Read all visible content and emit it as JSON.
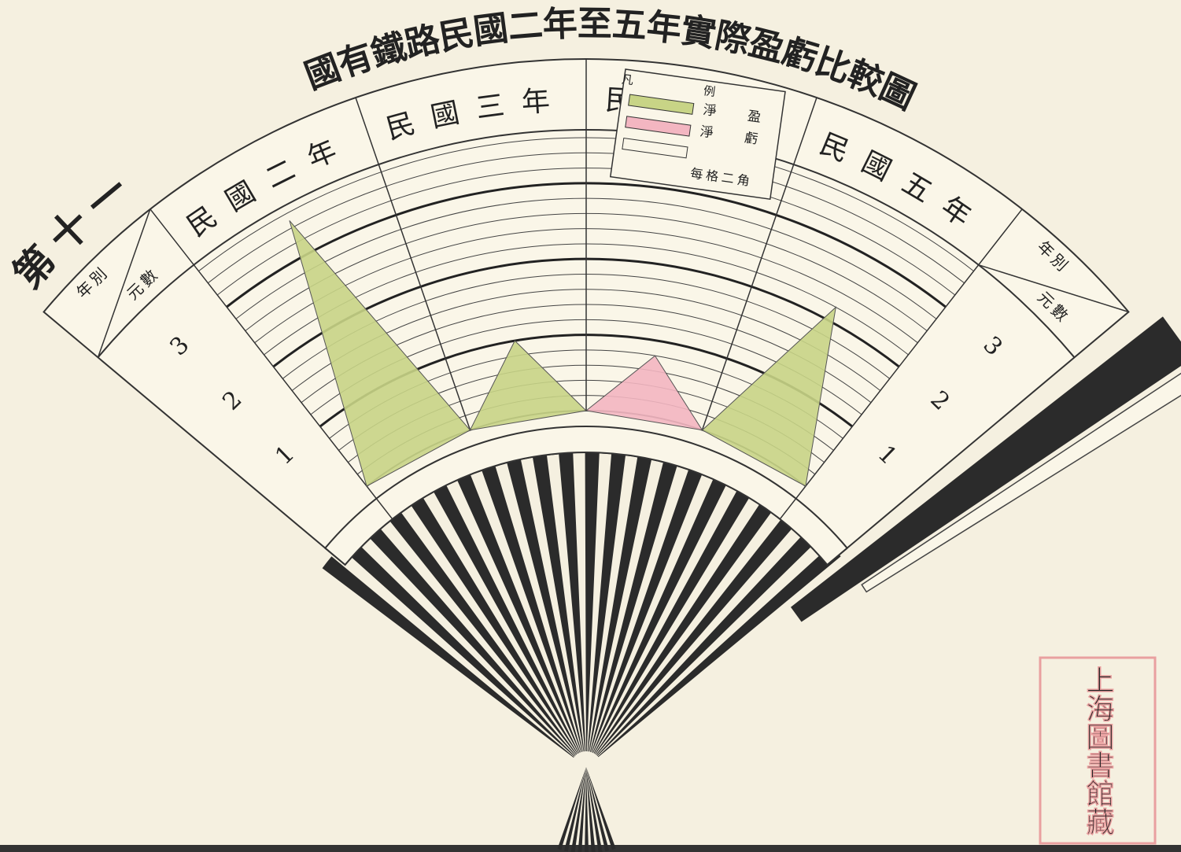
{
  "chart_data": {
    "type": "fan",
    "number": "第十一",
    "title": "國有鐵路民國二年至五年實際盈虧比較圖",
    "corner_labels": [
      "年別",
      "元數"
    ],
    "categories": [
      "民國二年",
      "民國三年",
      "民國四年",
      "民國五年"
    ],
    "series": [
      {
        "name": "淨盈",
        "color": "#c8d486",
        "values": [
          3.5,
          1.0,
          null,
          2.2
        ]
      },
      {
        "name": "淨虧",
        "color": "#f3b6c1",
        "values": [
          null,
          null,
          0.8,
          null
        ]
      }
    ],
    "ylim": [
      0,
      3.6
    ],
    "yticks": [
      1,
      2,
      3
    ],
    "grid_step": 0.2,
    "grid": true,
    "legend": {
      "title": "凡例",
      "scale_note": "每格二角"
    }
  },
  "seal": "上海圖書館藏"
}
